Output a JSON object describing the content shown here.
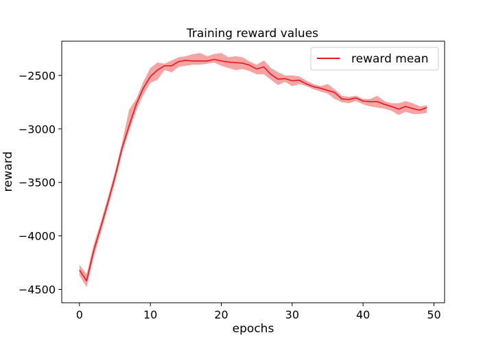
{
  "chart_data": {
    "type": "line",
    "title": "Training reward values",
    "xlabel": "epochs",
    "ylabel": "reward",
    "xlim": [
      -2.5,
      51.5
    ],
    "ylim": [
      -4625,
      -2180
    ],
    "xticks": [
      0,
      10,
      20,
      30,
      40,
      50
    ],
    "yticks": [
      -4500,
      -4000,
      -3500,
      -3000,
      -2500
    ],
    "xtick_labels": [
      "0",
      "10",
      "20",
      "30",
      "40",
      "50"
    ],
    "ytick_labels": [
      "−4500",
      "−4000",
      "−3500",
      "−3000",
      "−2500"
    ],
    "legend_position": "top-right",
    "grid": false,
    "series": [
      {
        "name": "reward mean",
        "color": "#e8161d",
        "band_color": "#f5a3a3",
        "x": [
          0,
          1,
          2,
          3,
          4,
          5,
          6,
          7,
          8,
          9,
          10,
          11,
          12,
          13,
          14,
          15,
          16,
          17,
          18,
          19,
          20,
          21,
          22,
          23,
          24,
          25,
          26,
          27,
          28,
          29,
          30,
          31,
          32,
          33,
          34,
          35,
          36,
          37,
          38,
          39,
          40,
          41,
          42,
          43,
          44,
          45,
          46,
          47,
          48,
          49
        ],
        "values": [
          -4320,
          -4420,
          -4140,
          -3920,
          -3690,
          -3450,
          -3180,
          -2970,
          -2770,
          -2620,
          -2510,
          -2450,
          -2410,
          -2410,
          -2370,
          -2360,
          -2365,
          -2365,
          -2365,
          -2350,
          -2365,
          -2375,
          -2380,
          -2385,
          -2405,
          -2440,
          -2420,
          -2490,
          -2535,
          -2530,
          -2550,
          -2545,
          -2580,
          -2605,
          -2620,
          -2640,
          -2660,
          -2720,
          -2725,
          -2710,
          -2740,
          -2745,
          -2745,
          -2770,
          -2790,
          -2815,
          -2790,
          -2810,
          -2825,
          -2800
        ],
        "lower": [
          -4370,
          -4480,
          -4200,
          -3970,
          -3740,
          -3500,
          -3230,
          -3020,
          -2830,
          -2680,
          -2570,
          -2540,
          -2450,
          -2470,
          -2420,
          -2410,
          -2400,
          -2400,
          -2390,
          -2380,
          -2410,
          -2430,
          -2450,
          -2440,
          -2460,
          -2490,
          -2490,
          -2540,
          -2590,
          -2560,
          -2600,
          -2580,
          -2600,
          -2630,
          -2650,
          -2670,
          -2720,
          -2750,
          -2760,
          -2740,
          -2770,
          -2790,
          -2800,
          -2810,
          -2830,
          -2870,
          -2840,
          -2860,
          -2860,
          -2850
        ],
        "upper": [
          -4270,
          -4360,
          -4080,
          -3870,
          -3640,
          -3400,
          -3130,
          -2820,
          -2720,
          -2560,
          -2430,
          -2380,
          -2390,
          -2360,
          -2330,
          -2320,
          -2300,
          -2290,
          -2320,
          -2300,
          -2290,
          -2330,
          -2320,
          -2330,
          -2370,
          -2400,
          -2360,
          -2430,
          -2470,
          -2500,
          -2500,
          -2510,
          -2550,
          -2580,
          -2600,
          -2580,
          -2630,
          -2690,
          -2700,
          -2690,
          -2720,
          -2720,
          -2690,
          -2740,
          -2760,
          -2760,
          -2740,
          -2760,
          -2790,
          -2780
        ]
      }
    ]
  }
}
